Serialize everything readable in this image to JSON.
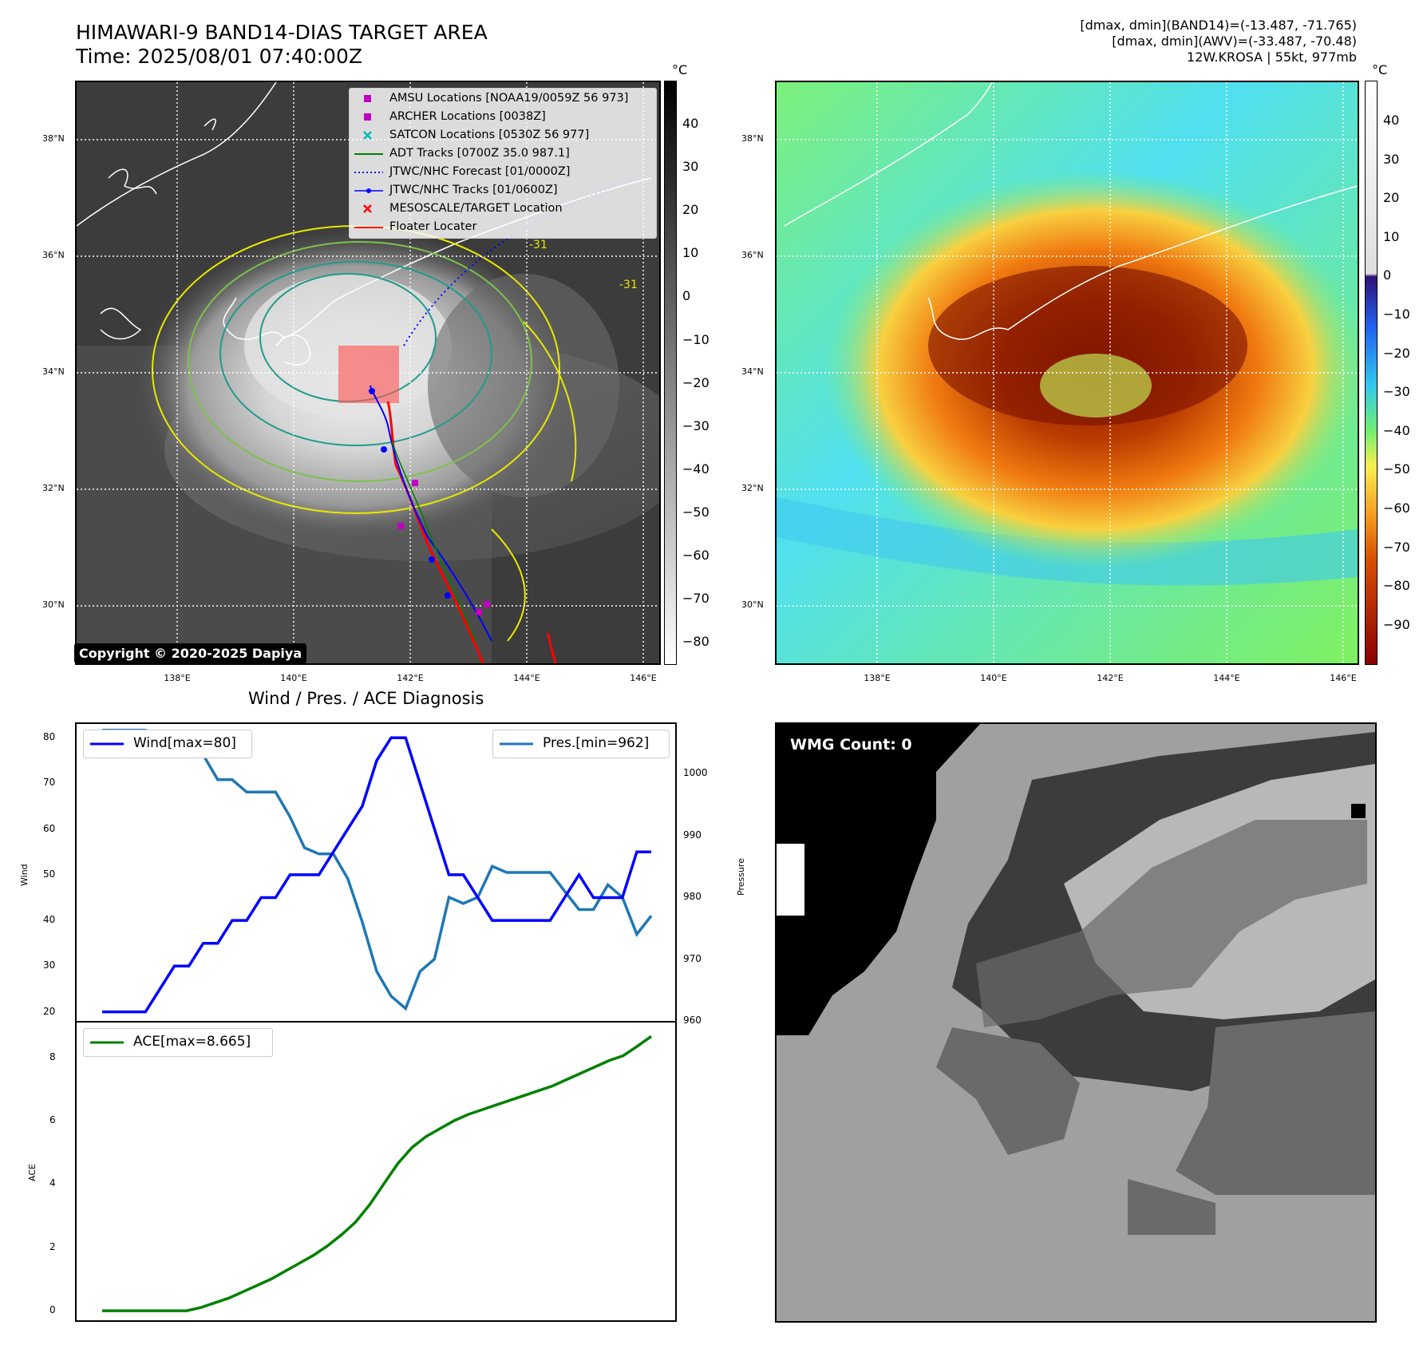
{
  "header": {
    "title_line1": "HIMAWARI-9 BAND14-DIAS TARGET AREA",
    "title_line2": "Time: 2025/08/01 07:40:00Z",
    "info_line1": "[dmax, dmin](BAND14)=(-13.487, -71.765)",
    "info_line2": "[dmax, dmin](AWV)=(-33.487, -70.48)",
    "info_line3": "12W.KROSA | 55kt, 977mb"
  },
  "ir_map": {
    "lat_labels": [
      "38°N",
      "36°N",
      "34°N",
      "32°N",
      "30°N"
    ],
    "lon_labels": [
      "138°E",
      "140°E",
      "142°E",
      "144°E",
      "146°E"
    ],
    "contour_label": "-31",
    "copyright": "Copyright © 2020-2025 Dapiya",
    "colorbar_unit": "°C",
    "colorbar_ticks": [
      "40",
      "30",
      "20",
      "10",
      "0",
      "−10",
      "−20",
      "−30",
      "−40",
      "−50",
      "−60",
      "−70",
      "−80"
    ],
    "legend": [
      {
        "label": "AMSU Locations [NOAA19/0059Z 56 973]",
        "symbol": "square",
        "color": "#c000c0"
      },
      {
        "label": "ARCHER Locations [0038Z]",
        "symbol": "square",
        "color": "#c000c0"
      },
      {
        "label": "SATCON Locations [0530Z 56 977]",
        "symbol": "x",
        "color": "#00b8b8"
      },
      {
        "label": "ADT Tracks [0700Z 35.0 987.1]",
        "symbol": "line",
        "color": "#008000"
      },
      {
        "label": "JTWC/NHC Forecast [01/0000Z]",
        "symbol": "dotted",
        "color": "#0000ff"
      },
      {
        "label": "JTWC/NHC Tracks [01/0600Z]",
        "symbol": "line-dot",
        "color": "#0000ff"
      },
      {
        "label": "MESOSCALE/TARGET Location",
        "symbol": "x",
        "color": "#ff0000"
      },
      {
        "label": "Floater Locater",
        "symbol": "line",
        "color": "#ff0000"
      }
    ]
  },
  "awv_map": {
    "lat_labels": [
      "38°N",
      "36°N",
      "34°N",
      "32°N",
      "30°N"
    ],
    "lon_labels": [
      "138°E",
      "140°E",
      "142°E",
      "144°E",
      "146°E"
    ],
    "colorbar_unit": "°C",
    "colorbar_ticks": [
      "40",
      "30",
      "20",
      "10",
      "0",
      "−10",
      "−20",
      "−30",
      "−40",
      "−50",
      "−60",
      "−70",
      "−80",
      "−90"
    ]
  },
  "wmg": {
    "label": "WMG Count: 0"
  },
  "chart_data": [
    {
      "type": "line",
      "title": "Wind / Pres. / ACE Diagnosis",
      "ylabel": "Wind",
      "y2label": "Pressure",
      "ylim": [
        18,
        83
      ],
      "y2lim": [
        960,
        1008
      ],
      "yticks": [
        "80",
        "70",
        "60",
        "50",
        "40",
        "30",
        "20"
      ],
      "y2ticks": [
        "1000",
        "990",
        "980",
        "970",
        "960"
      ],
      "series": [
        {
          "name": "Wind[max=80]",
          "color": "#0000ff",
          "values": [
            20,
            20,
            20,
            20,
            25,
            30,
            30,
            35,
            35,
            40,
            40,
            45,
            45,
            50,
            50,
            50,
            55,
            60,
            65,
            75,
            80,
            80,
            70,
            60,
            50,
            50,
            45,
            40,
            40,
            40,
            40,
            40,
            45,
            50,
            45,
            45,
            45,
            55,
            55
          ]
        },
        {
          "name": "Pres.[min=962]",
          "color": "#1f77b4",
          "values": [
            1007,
            1007,
            1007,
            1007,
            1004,
            1004,
            1003,
            1003,
            999,
            999,
            997,
            997,
            997,
            993,
            988,
            987,
            987,
            983,
            976,
            968,
            964,
            962,
            968,
            970,
            980,
            979,
            980,
            985,
            984,
            984,
            984,
            984,
            981,
            978,
            978,
            982,
            980,
            974,
            977
          ]
        }
      ]
    },
    {
      "type": "line",
      "ylabel": "ACE",
      "ylim": [
        -0.3,
        9.1
      ],
      "yticks": [
        "8",
        "6",
        "4",
        "2",
        "0"
      ],
      "series": [
        {
          "name": "ACE[max=8.665]",
          "color": "#008000",
          "values": [
            0,
            0,
            0,
            0,
            0,
            0,
            0,
            0.1,
            0.25,
            0.4,
            0.6,
            0.8,
            1.0,
            1.25,
            1.5,
            1.75,
            2.05,
            2.4,
            2.8,
            3.35,
            4.0,
            4.65,
            5.15,
            5.5,
            5.75,
            6.0,
            6.2,
            6.35,
            6.5,
            6.65,
            6.8,
            6.95,
            7.1,
            7.3,
            7.5,
            7.7,
            7.9,
            8.05,
            8.35,
            8.665
          ]
        }
      ]
    }
  ]
}
